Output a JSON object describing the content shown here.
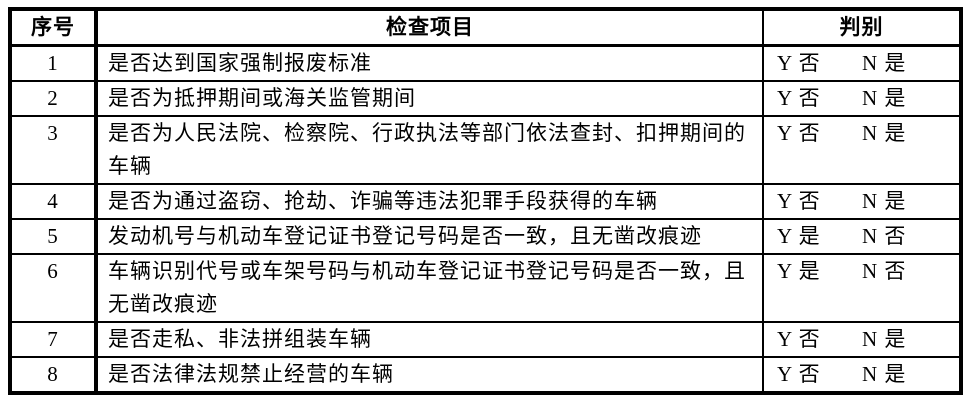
{
  "document": {
    "type": "vehicle-inspection-checklist-table",
    "colors": {
      "border": "#000000",
      "text": "#000000",
      "background": "#ffffff"
    },
    "table": {
      "headers": {
        "no": "序号",
        "item": "检查项目",
        "judgment": "判别"
      },
      "rows": [
        {
          "no": "1",
          "item": "是否达到国家强制报废标准",
          "judgment_y": "Y 否",
          "judgment_n": "N 是"
        },
        {
          "no": "2",
          "item": "是否为抵押期间或海关监管期间",
          "judgment_y": "Y 否",
          "judgment_n": "N 是"
        },
        {
          "no": "3",
          "item": "是否为人民法院、检察院、行政执法等部门依法查封、扣押期间的车辆",
          "judgment_y": "Y 否",
          "judgment_n": "N 是"
        },
        {
          "no": "4",
          "item": "是否为通过盗窃、抢劫、诈骗等违法犯罪手段获得的车辆",
          "judgment_y": "Y 否",
          "judgment_n": "N 是"
        },
        {
          "no": "5",
          "item": "发动机号与机动车登记证书登记号码是否一致，且无凿改痕迹",
          "judgment_y": "Y 是",
          "judgment_n": "N 否"
        },
        {
          "no": "6",
          "item": "车辆识别代号或车架号码与机动车登记证书登记号码是否一致，且无凿改痕迹",
          "judgment_y": "Y 是",
          "judgment_n": "N 否"
        },
        {
          "no": "7",
          "item": "是否走私、非法拼组装车辆",
          "judgment_y": "Y 否",
          "judgment_n": "N 是"
        },
        {
          "no": "8",
          "item": "是否法律法规禁止经营的车辆",
          "judgment_y": "Y 否",
          "judgment_n": "N 是"
        }
      ]
    }
  }
}
